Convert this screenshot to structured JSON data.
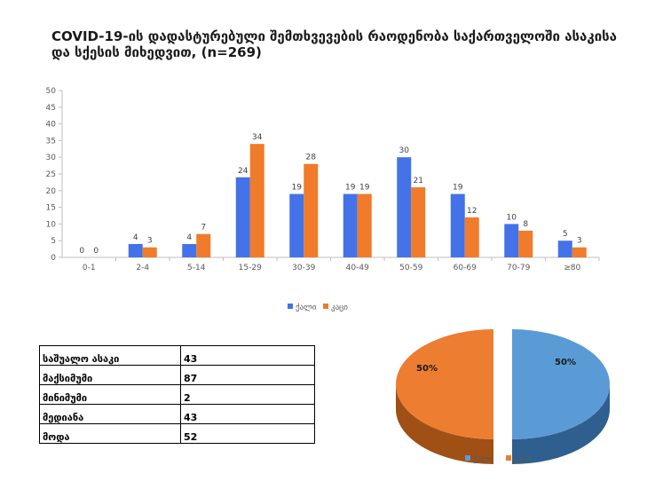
{
  "title": "COVID-19-ის დადასტურებული შემთხვევების რაოდენობა საქართველოში ასაკისა და სქესის მიხედვით, (n=269)",
  "chart_data": [
    {
      "type": "bar",
      "title": "COVID-19-ის დადასტურებული შემთხვევების რაოდენობა საქართველოში ასაკისა და სქესის მიხედვით, (n=269)",
      "categories": [
        "0-1",
        "2-4",
        "5-14",
        "15-29",
        "30-39",
        "40-49",
        "50-59",
        "60-69",
        "70-79",
        "≥80"
      ],
      "series": [
        {
          "name": "ქალი",
          "color": "#4472e8",
          "values": [
            0,
            4,
            4,
            24,
            19,
            19,
            30,
            19,
            10,
            5
          ]
        },
        {
          "name": "კაცი",
          "color": "#f07b2a",
          "values": [
            0,
            3,
            7,
            34,
            28,
            19,
            21,
            12,
            8,
            3
          ]
        }
      ],
      "ylim": [
        0,
        50
      ],
      "yticks": [
        0,
        5,
        10,
        15,
        20,
        25,
        30,
        35,
        40,
        45,
        50
      ],
      "grid": false,
      "legend_position": "bottom"
    },
    {
      "type": "pie",
      "categories": [
        "ქალი",
        "კაცი"
      ],
      "values": [
        50,
        50
      ],
      "labels": [
        "50%",
        "50%"
      ],
      "colors": [
        "#5b9bd5",
        "#ed7d31"
      ],
      "legend_position": "bottom"
    }
  ],
  "stats": [
    {
      "label": "საშუალო ასაკი",
      "value": "43"
    },
    {
      "label": "მაქსიმუმი",
      "value": "87"
    },
    {
      "label": "მინიმუმი",
      "value": "2"
    },
    {
      "label": "მედიანა",
      "value": "43"
    },
    {
      "label": "მოდა",
      "value": "52"
    }
  ]
}
